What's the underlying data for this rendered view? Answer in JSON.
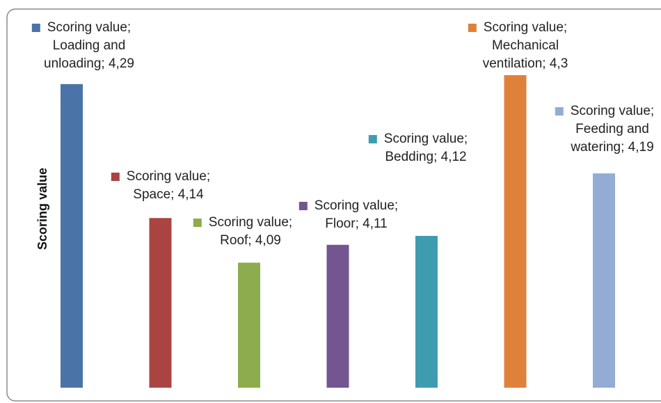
{
  "chart_data": {
    "type": "bar",
    "y_label": "Scoring value",
    "values": [
      4.29,
      4.14,
      4.09,
      4.11,
      4.12,
      4.3,
      4.19
    ],
    "value_labels": [
      "Scoring value; Loading and unloading; 4,29",
      "Scoring value; Space; 4,14",
      "Scoring value; Roof; 4,09",
      "Scoring value; Floor; 4,11",
      "Scoring value; Bedding; 4,12",
      "Scoring value; Mechanical ventilation; 4,3",
      "Scoring value; Feeding and watering; 4,19"
    ],
    "colors": [
      "#4a73a8",
      "#aa4443",
      "#8cac4d",
      "#735590",
      "#3f9bb0",
      "#e0813a",
      "#94acd4"
    ],
    "ylim": [
      3.95,
      4.3
    ]
  }
}
